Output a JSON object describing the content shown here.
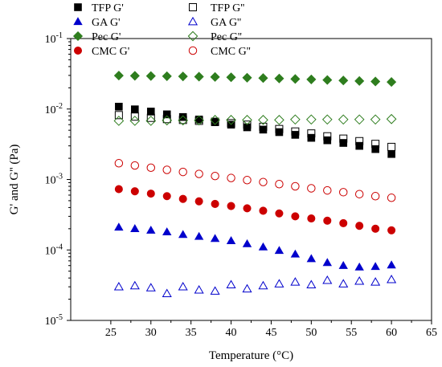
{
  "chart_data": {
    "type": "scatter",
    "xlabel": "Temperature (°C)",
    "ylabel": "G' and G'' (Pa)",
    "xlim": [
      20,
      65
    ],
    "ylim": [
      1e-05,
      0.1
    ],
    "y_scale": "log",
    "x_ticks": [
      25,
      30,
      35,
      40,
      45,
      50,
      55,
      60,
      65
    ],
    "y_ticks": [
      {
        "value": 1e-05,
        "base": "10",
        "exp": "-5"
      },
      {
        "value": 0.0001,
        "base": "10",
        "exp": "-4"
      },
      {
        "value": 0.001,
        "base": "10",
        "exp": "-3"
      },
      {
        "value": 0.01,
        "base": "10",
        "exp": "-2"
      },
      {
        "value": 0.1,
        "base": "10",
        "exp": "-1"
      }
    ],
    "legend_position": "top",
    "series": [
      {
        "name": "TFP G'",
        "marker": "square",
        "filled": true,
        "color": "#000000",
        "x": [
          26,
          28,
          30,
          32,
          34,
          36,
          38,
          40,
          42,
          44,
          46,
          48,
          50,
          52,
          54,
          56,
          58,
          60
        ],
        "values": [
          0.0108,
          0.0099,
          0.0092,
          0.0084,
          0.0077,
          0.0071,
          0.0065,
          0.006,
          0.0055,
          0.0051,
          0.0047,
          0.0043,
          0.0039,
          0.0036,
          0.0033,
          0.003,
          0.0027,
          0.0023
        ]
      },
      {
        "name": "TFP G''",
        "marker": "square",
        "filled": false,
        "color": "#000000",
        "x": [
          26,
          28,
          30,
          32,
          34,
          36,
          38,
          40,
          42,
          44,
          46,
          48,
          50,
          52,
          54,
          56,
          58,
          60
        ],
        "values": [
          0.0082,
          0.0078,
          0.0075,
          0.0072,
          0.007,
          0.0068,
          0.0066,
          0.0063,
          0.006,
          0.0056,
          0.0052,
          0.0048,
          0.0045,
          0.0041,
          0.0038,
          0.0035,
          0.0032,
          0.0029
        ]
      },
      {
        "name": "GA G'",
        "marker": "triangle",
        "filled": true,
        "color": "#0000cc",
        "x": [
          26,
          28,
          30,
          32,
          34,
          36,
          38,
          40,
          42,
          44,
          46,
          48,
          50,
          52,
          54,
          56,
          58,
          60
        ],
        "values": [
          0.00021,
          0.0002,
          0.00019,
          0.00018,
          0.000165,
          0.000155,
          0.000145,
          0.000135,
          0.000122,
          0.00011,
          9.8e-05,
          8.7e-05,
          7.5e-05,
          6.6e-05,
          6e-05,
          5.7e-05,
          5.8e-05,
          6.1e-05
        ]
      },
      {
        "name": "GA G''",
        "marker": "triangle",
        "filled": false,
        "color": "#0000cc",
        "x": [
          26,
          28,
          30,
          32,
          34,
          36,
          38,
          40,
          42,
          44,
          46,
          48,
          50,
          52,
          54,
          56,
          58,
          60
        ],
        "values": [
          3e-05,
          3.1e-05,
          2.9e-05,
          2.4e-05,
          3e-05,
          2.7e-05,
          2.6e-05,
          3.2e-05,
          2.8e-05,
          3.1e-05,
          3.3e-05,
          3.5e-05,
          3.2e-05,
          3.7e-05,
          3.3e-05,
          3.6e-05,
          3.5e-05,
          3.8e-05
        ]
      },
      {
        "name": "Pec G'",
        "marker": "diamond",
        "filled": true,
        "color": "#2e7d1e",
        "x": [
          26,
          28,
          30,
          32,
          34,
          36,
          38,
          40,
          42,
          44,
          46,
          48,
          50,
          52,
          54,
          56,
          58,
          60
        ],
        "values": [
          0.0298,
          0.0296,
          0.0294,
          0.0292,
          0.029,
          0.0288,
          0.0285,
          0.0282,
          0.0278,
          0.0275,
          0.0271,
          0.0267,
          0.0263,
          0.0258,
          0.0254,
          0.025,
          0.0246,
          0.0242
        ]
      },
      {
        "name": "Pec G''",
        "marker": "diamond",
        "filled": false,
        "color": "#2e7d1e",
        "x": [
          26,
          28,
          30,
          32,
          34,
          36,
          38,
          40,
          42,
          44,
          46,
          48,
          50,
          52,
          54,
          56,
          58,
          60
        ],
        "values": [
          0.0068,
          0.0068,
          0.0068,
          0.0069,
          0.0069,
          0.0069,
          0.007,
          0.007,
          0.007,
          0.007,
          0.007,
          0.0071,
          0.0071,
          0.0071,
          0.0071,
          0.0071,
          0.0071,
          0.0072
        ]
      },
      {
        "name": "CMC G'",
        "marker": "circle",
        "filled": true,
        "color": "#cc0000",
        "x": [
          26,
          28,
          30,
          32,
          34,
          36,
          38,
          40,
          42,
          44,
          46,
          48,
          50,
          52,
          54,
          56,
          58,
          60
        ],
        "values": [
          0.00073,
          0.00068,
          0.00063,
          0.00058,
          0.00053,
          0.00049,
          0.00045,
          0.00042,
          0.00039,
          0.00036,
          0.00033,
          0.0003,
          0.00028,
          0.00026,
          0.00024,
          0.00022,
          0.0002,
          0.00019
        ]
      },
      {
        "name": "CMC G''",
        "marker": "circle",
        "filled": false,
        "color": "#cc0000",
        "x": [
          26,
          28,
          30,
          32,
          34,
          36,
          38,
          40,
          42,
          44,
          46,
          48,
          50,
          52,
          54,
          56,
          58,
          60
        ],
        "values": [
          0.0017,
          0.00158,
          0.00147,
          0.00137,
          0.00128,
          0.0012,
          0.00112,
          0.00105,
          0.00098,
          0.00092,
          0.00086,
          0.0008,
          0.00075,
          0.0007,
          0.00066,
          0.00062,
          0.00058,
          0.00055
        ]
      }
    ]
  }
}
